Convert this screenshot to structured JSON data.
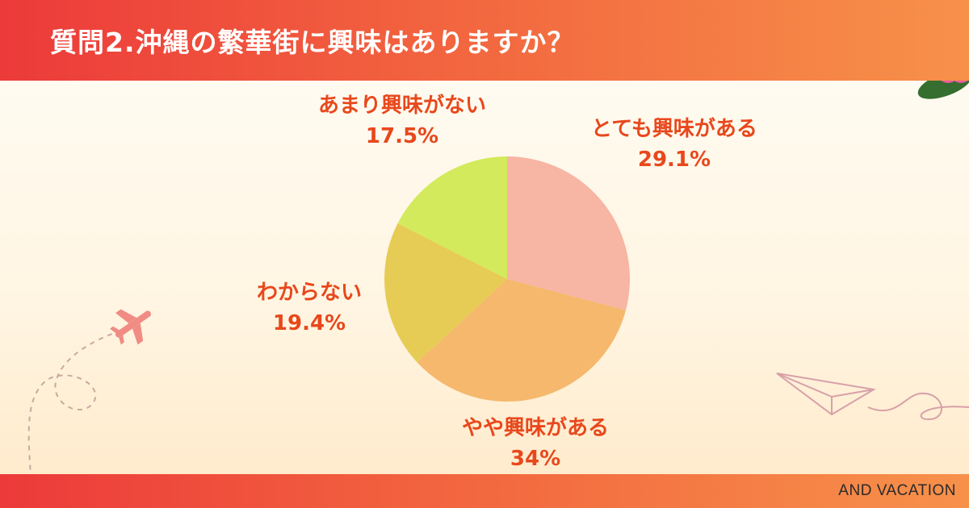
{
  "header": {
    "title": "質問2.沖縄の繁華街に興味はありますか？"
  },
  "footer": {
    "brand": "AND VACATION"
  },
  "chart_data": {
    "type": "pie",
    "start_angle_deg": 0,
    "direction": "clockwise",
    "slices": [
      {
        "label": "とても興味がある",
        "value": 29.1,
        "value_label": "29.1%",
        "color": "#f7b5a3"
      },
      {
        "label": "やや興味がある",
        "value": 34,
        "value_label": "34%",
        "color": "#f5b86c"
      },
      {
        "label": "わからない",
        "value": 19.4,
        "value_label": "19.4%",
        "color": "#e6cc55"
      },
      {
        "label": "あまり興味がない",
        "value": 17.5,
        "value_label": "17.5%",
        "color": "#d3ea5c"
      }
    ],
    "legend": "none"
  },
  "colors": {
    "header_gradient_start": "#ec3a3a",
    "header_gradient_end": "#f7914a",
    "label_text": "#e8481c"
  },
  "decorations": [
    "hibiscus-flowers",
    "airplane-icon",
    "paper-plane-icon",
    "dashed-flight-path"
  ]
}
